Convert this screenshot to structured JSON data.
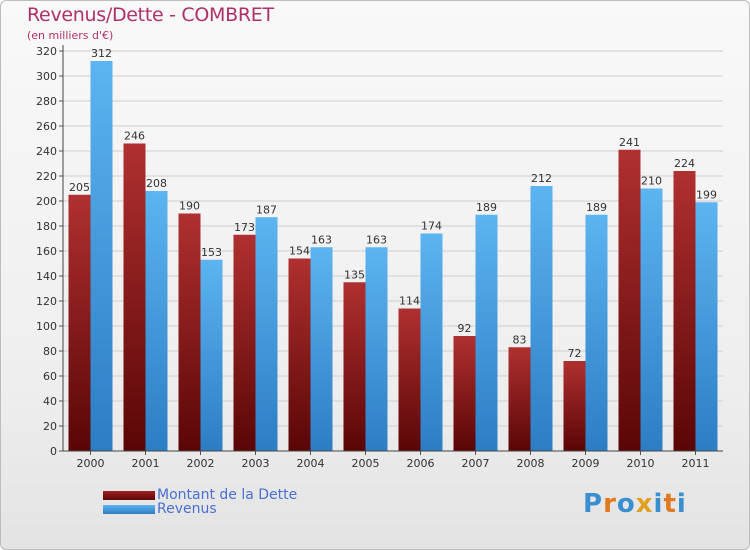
{
  "title": "Revenus/Dette - COMBRET",
  "subtitle": "(en milliers d'€)",
  "legend": [
    {
      "label": "Montant de la Dette",
      "color": "#7a1010"
    },
    {
      "label": "Revenus",
      "color": "#4aa0e2"
    }
  ],
  "logo": {
    "text": "Proxiti",
    "letters": [
      {
        "ch": "P",
        "color": "#3a8fd0"
      },
      {
        "ch": "r",
        "color": "#e07a20"
      },
      {
        "ch": "o",
        "color": "#3a8fd0"
      },
      {
        "ch": "x",
        "color": "#e0a020"
      },
      {
        "ch": "i",
        "color": "#3a8fd0"
      },
      {
        "ch": "t",
        "color": "#e07a20"
      },
      {
        "ch": "i",
        "color": "#3a8fd0"
      }
    ]
  },
  "chart_data": {
    "type": "bar",
    "categories": [
      "2000",
      "2001",
      "2002",
      "2003",
      "2004",
      "2005",
      "2006",
      "2007",
      "2008",
      "2009",
      "2010",
      "2011"
    ],
    "series": [
      {
        "name": "Montant de la Dette",
        "values": [
          205,
          246,
          190,
          173,
          154,
          135,
          114,
          92,
          83,
          72,
          241,
          224
        ]
      },
      {
        "name": "Revenus",
        "values": [
          312,
          208,
          153,
          187,
          163,
          163,
          174,
          189,
          212,
          189,
          210,
          199
        ]
      }
    ],
    "ylim": [
      0,
      320
    ],
    "yticks": [
      0,
      20,
      40,
      60,
      80,
      100,
      120,
      140,
      160,
      180,
      200,
      220,
      240,
      260,
      280,
      300,
      320
    ],
    "grid": true,
    "legend_position": "bottom-left"
  }
}
